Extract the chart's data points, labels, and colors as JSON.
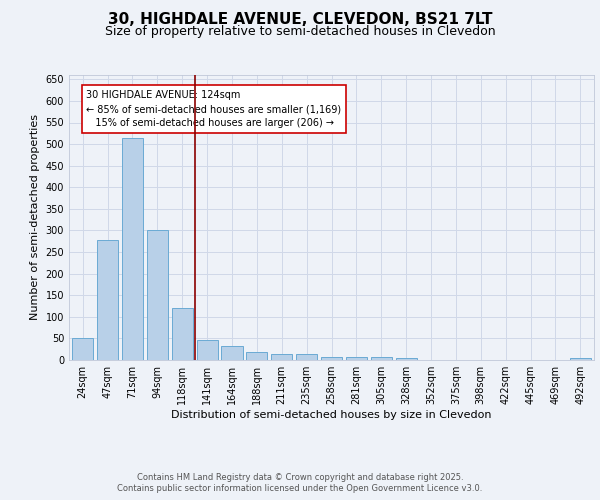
{
  "title_line1": "30, HIGHDALE AVENUE, CLEVEDON, BS21 7LT",
  "title_line2": "Size of property relative to semi-detached houses in Clevedon",
  "xlabel": "Distribution of semi-detached houses by size in Clevedon",
  "ylabel": "Number of semi-detached properties",
  "categories": [
    "24sqm",
    "47sqm",
    "71sqm",
    "94sqm",
    "118sqm",
    "141sqm",
    "164sqm",
    "188sqm",
    "211sqm",
    "235sqm",
    "258sqm",
    "281sqm",
    "305sqm",
    "328sqm",
    "352sqm",
    "375sqm",
    "398sqm",
    "422sqm",
    "445sqm",
    "469sqm",
    "492sqm"
  ],
  "values": [
    52,
    278,
    515,
    300,
    120,
    46,
    33,
    18,
    15,
    13,
    6,
    8,
    6,
    4,
    1,
    1,
    0,
    0,
    0,
    0,
    5
  ],
  "bar_color": "#b8d0e8",
  "bar_edge_color": "#6aaad4",
  "grid_color": "#d0d8e8",
  "background_color": "#eef2f8",
  "vline_color": "#8b0000",
  "annotation_line1": "30 HIGHDALE AVENUE: 124sqm",
  "annotation_line2": "← 85% of semi-detached houses are smaller (1,169)",
  "annotation_line3": "   15% of semi-detached houses are larger (206) →",
  "annotation_box_facecolor": "#ffffff",
  "annotation_box_edgecolor": "#cc0000",
  "ylim": [
    0,
    660
  ],
  "yticks": [
    0,
    50,
    100,
    150,
    200,
    250,
    300,
    350,
    400,
    450,
    500,
    550,
    600,
    650
  ],
  "footer_line1": "Contains HM Land Registry data © Crown copyright and database right 2025.",
  "footer_line2": "Contains public sector information licensed under the Open Government Licence v3.0.",
  "title_fontsize": 11,
  "subtitle_fontsize": 9,
  "axis_label_fontsize": 8,
  "tick_fontsize": 7,
  "annotation_fontsize": 7,
  "footer_fontsize": 6
}
